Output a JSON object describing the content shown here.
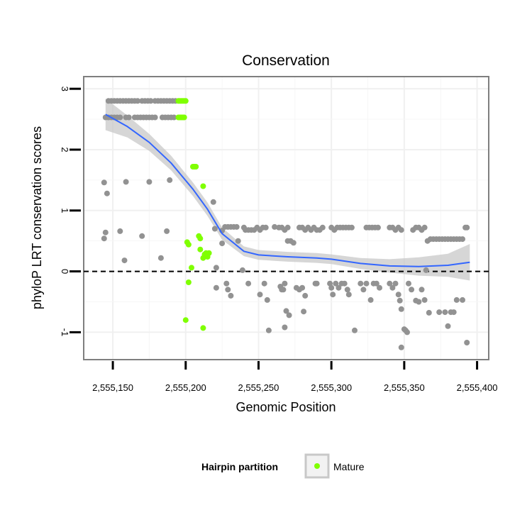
{
  "chart_data": {
    "type": "scatter",
    "title": "Conservation",
    "xlabel": "Genomic Position",
    "ylabel": "phyloP LRT conservation scores",
    "xlim": [
      2555130,
      2555408
    ],
    "ylim": [
      -1.45,
      3.2
    ],
    "x_ticks": [
      2555150,
      2555200,
      2555250,
      2555300,
      2555350,
      2555400
    ],
    "x_tick_labels": [
      "2,555,150",
      "2,555,200",
      "2,555,250",
      "2,555,300",
      "2,555,350",
      "2,555,400"
    ],
    "y_ticks": [
      -1,
      0,
      1,
      2,
      3
    ],
    "y_tick_labels": [
      "-1",
      "0",
      "1",
      "2",
      "3"
    ],
    "hline": {
      "y": 0,
      "style": "dashed",
      "color": "#000000"
    },
    "legend": {
      "title": "Hairpin partition",
      "entries": [
        "Mature"
      ],
      "position": "bottom"
    },
    "series": [
      {
        "name": "Other",
        "color": "#929292",
        "points": [
          [
            2555147,
            2.8
          ],
          [
            2555149,
            2.8
          ],
          [
            2555151,
            2.8
          ],
          [
            2555153,
            2.8
          ],
          [
            2555155,
            2.8
          ],
          [
            2555157,
            2.8
          ],
          [
            2555159,
            2.8
          ],
          [
            2555161,
            2.8
          ],
          [
            2555163,
            2.8
          ],
          [
            2555165,
            2.8
          ],
          [
            2555167,
            2.8
          ],
          [
            2555170,
            2.8
          ],
          [
            2555172,
            2.8
          ],
          [
            2555174,
            2.8
          ],
          [
            2555176,
            2.8
          ],
          [
            2555179,
            2.8
          ],
          [
            2555181,
            2.8
          ],
          [
            2555183,
            2.8
          ],
          [
            2555185,
            2.8
          ],
          [
            2555187,
            2.8
          ],
          [
            2555189,
            2.8
          ],
          [
            2555191,
            2.8
          ],
          [
            2555193,
            2.8
          ],
          [
            2555145,
            2.53
          ],
          [
            2555147,
            2.53
          ],
          [
            2555149,
            2.53
          ],
          [
            2555151,
            2.53
          ],
          [
            2555153,
            2.53
          ],
          [
            2555155,
            2.53
          ],
          [
            2555159,
            2.53
          ],
          [
            2555161,
            2.53
          ],
          [
            2555165,
            2.53
          ],
          [
            2555167,
            2.53
          ],
          [
            2555169,
            2.53
          ],
          [
            2555171,
            2.53
          ],
          [
            2555173,
            2.53
          ],
          [
            2555175,
            2.53
          ],
          [
            2555177,
            2.53
          ],
          [
            2555179,
            2.53
          ],
          [
            2555184,
            2.53
          ],
          [
            2555186,
            2.53
          ],
          [
            2555188,
            2.53
          ],
          [
            2555190,
            2.53
          ],
          [
            2555192,
            2.53
          ],
          [
            2555144,
            1.46
          ],
          [
            2555146,
            1.28
          ],
          [
            2555159,
            1.47
          ],
          [
            2555175,
            1.47
          ],
          [
            2555189,
            1.5
          ],
          [
            2555144,
            0.54
          ],
          [
            2555145,
            0.64
          ],
          [
            2555155,
            0.66
          ],
          [
            2555158,
            0.18
          ],
          [
            2555170,
            0.58
          ],
          [
            2555183,
            0.22
          ],
          [
            2555187,
            0.66
          ],
          [
            2555219,
            1.14
          ],
          [
            2555220,
            0.7
          ],
          [
            2555221,
            0.06
          ],
          [
            2555221,
            -0.27
          ],
          [
            2555225,
            0.46
          ],
          [
            2555225,
            0.67
          ],
          [
            2555227,
            0.73
          ],
          [
            2555229,
            0.73
          ],
          [
            2555231,
            0.73
          ],
          [
            2555233,
            0.73
          ],
          [
            2555235,
            0.73
          ],
          [
            2555228,
            -0.2
          ],
          [
            2555229,
            -0.3
          ],
          [
            2555231,
            -0.4
          ],
          [
            2555236,
            0.5
          ],
          [
            2555239,
            0.02
          ],
          [
            2555240,
            0.72
          ],
          [
            2555241,
            0.68
          ],
          [
            2555243,
            0.68
          ],
          [
            2555245,
            0.68
          ],
          [
            2555247,
            0.68
          ],
          [
            2555249,
            0.72
          ],
          [
            2555251,
            0.68
          ],
          [
            2555253,
            0.72
          ],
          [
            2555255,
            0.72
          ],
          [
            2555243,
            -0.2
          ],
          [
            2555251,
            -0.38
          ],
          [
            2555254,
            -0.2
          ],
          [
            2555256,
            -0.47
          ],
          [
            2555257,
            -0.97
          ],
          [
            2555261,
            0.73
          ],
          [
            2555264,
            0.72
          ],
          [
            2555266,
            0.72
          ],
          [
            2555268,
            0.68
          ],
          [
            2555270,
            0.72
          ],
          [
            2555265,
            -0.25
          ],
          [
            2555266,
            -0.3
          ],
          [
            2555267,
            -0.3
          ],
          [
            2555268,
            -0.2
          ],
          [
            2555268,
            -0.92
          ],
          [
            2555269,
            -0.65
          ],
          [
            2555271,
            -0.72
          ],
          [
            2555270,
            0.5
          ],
          [
            2555272,
            0.5
          ],
          [
            2555274,
            0.47
          ],
          [
            2555276,
            -0.27
          ],
          [
            2555278,
            -0.3
          ],
          [
            2555278,
            0.72
          ],
          [
            2555280,
            0.72
          ],
          [
            2555282,
            0.68
          ],
          [
            2555284,
            0.72
          ],
          [
            2555286,
            0.68
          ],
          [
            2555288,
            0.72
          ],
          [
            2555290,
            0.68
          ],
          [
            2555292,
            0.68
          ],
          [
            2555294,
            0.72
          ],
          [
            2555280,
            -0.27
          ],
          [
            2555281,
            -0.66
          ],
          [
            2555282,
            -0.4
          ],
          [
            2555289,
            -0.2
          ],
          [
            2555290,
            -0.2
          ],
          [
            2555300,
            0.72
          ],
          [
            2555302,
            0.68
          ],
          [
            2555304,
            0.72
          ],
          [
            2555306,
            0.72
          ],
          [
            2555308,
            0.72
          ],
          [
            2555310,
            0.72
          ],
          [
            2555312,
            0.72
          ],
          [
            2555314,
            0.72
          ],
          [
            2555299,
            -0.2
          ],
          [
            2555300,
            -0.27
          ],
          [
            2555301,
            -0.38
          ],
          [
            2555303,
            -0.2
          ],
          [
            2555305,
            -0.27
          ],
          [
            2555307,
            -0.2
          ],
          [
            2555309,
            -0.2
          ],
          [
            2555311,
            -0.3
          ],
          [
            2555312,
            -0.38
          ],
          [
            2555316,
            -0.97
          ],
          [
            2555320,
            -0.2
          ],
          [
            2555322,
            -0.3
          ],
          [
            2555324,
            0.72
          ],
          [
            2555326,
            0.72
          ],
          [
            2555328,
            0.72
          ],
          [
            2555330,
            0.72
          ],
          [
            2555332,
            0.72
          ],
          [
            2555324,
            -0.2
          ],
          [
            2555327,
            -0.47
          ],
          [
            2555329,
            -0.2
          ],
          [
            2555331,
            -0.2
          ],
          [
            2555333,
            -0.27
          ],
          [
            2555340,
            0.72
          ],
          [
            2555342,
            0.72
          ],
          [
            2555344,
            0.68
          ],
          [
            2555346,
            0.72
          ],
          [
            2555348,
            0.68
          ],
          [
            2555356,
            0.68
          ],
          [
            2555358,
            0.72
          ],
          [
            2555360,
            0.72
          ],
          [
            2555362,
            0.68
          ],
          [
            2555364,
            0.72
          ],
          [
            2555340,
            -0.2
          ],
          [
            2555342,
            -0.27
          ],
          [
            2555344,
            -0.2
          ],
          [
            2555346,
            -0.38
          ],
          [
            2555347,
            -0.48
          ],
          [
            2555348,
            -0.62
          ],
          [
            2555348,
            -1.25
          ],
          [
            2555350,
            -0.95
          ],
          [
            2555351,
            -0.97
          ],
          [
            2555352,
            -1.0
          ],
          [
            2555353,
            -0.2
          ],
          [
            2555355,
            -0.3
          ],
          [
            2555358,
            -0.48
          ],
          [
            2555360,
            -0.5
          ],
          [
            2555362,
            -0.3
          ],
          [
            2555364,
            -0.47
          ],
          [
            2555365,
            0.02
          ],
          [
            2555366,
            0.5
          ],
          [
            2555367,
            -0.68
          ],
          [
            2555368,
            0.53
          ],
          [
            2555370,
            0.53
          ],
          [
            2555372,
            0.53
          ],
          [
            2555374,
            0.53
          ],
          [
            2555376,
            0.53
          ],
          [
            2555378,
            0.53
          ],
          [
            2555380,
            0.53
          ],
          [
            2555382,
            0.53
          ],
          [
            2555384,
            0.53
          ],
          [
            2555386,
            0.53
          ],
          [
            2555388,
            0.53
          ],
          [
            2555390,
            0.53
          ],
          [
            2555374,
            -0.67
          ],
          [
            2555378,
            -0.67
          ],
          [
            2555380,
            -0.9
          ],
          [
            2555382,
            -0.67
          ],
          [
            2555384,
            -0.67
          ],
          [
            2555386,
            -0.47
          ],
          [
            2555390,
            -0.47
          ],
          [
            2555392,
            0.72
          ],
          [
            2555393,
            0.72
          ],
          [
            2555393,
            -1.17
          ]
        ]
      },
      {
        "name": "Mature",
        "color": "#7fff00",
        "points": [
          [
            2555195,
            2.8
          ],
          [
            2555196,
            2.8
          ],
          [
            2555197,
            2.8
          ],
          [
            2555198,
            2.8
          ],
          [
            2555199,
            2.8
          ],
          [
            2555200,
            2.8
          ],
          [
            2555195,
            2.53
          ],
          [
            2555196,
            2.53
          ],
          [
            2555197,
            2.53
          ],
          [
            2555198,
            2.53
          ],
          [
            2555199,
            2.53
          ],
          [
            2555205,
            1.72
          ],
          [
            2555206,
            1.72
          ],
          [
            2555207,
            1.72
          ],
          [
            2555212,
            1.4
          ],
          [
            2555201,
            0.48
          ],
          [
            2555202,
            0.44
          ],
          [
            2555209,
            0.58
          ],
          [
            2555210,
            0.54
          ],
          [
            2555210,
            0.36
          ],
          [
            2555212,
            0.22
          ],
          [
            2555213,
            0.28
          ],
          [
            2555214,
            0.3
          ],
          [
            2555215,
            0.24
          ],
          [
            2555216,
            0.3
          ],
          [
            2555204,
            0.06
          ],
          [
            2555202,
            -0.18
          ],
          [
            2555200,
            -0.8
          ],
          [
            2555212,
            -0.93
          ]
        ]
      }
    ],
    "smooth": {
      "name": "loess fit",
      "color": "#3366ff",
      "band_color": "#c8c8c8",
      "x": [
        2555145,
        2555160,
        2555175,
        2555190,
        2555205,
        2555215,
        2555225,
        2555240,
        2555250,
        2555270,
        2555290,
        2555300,
        2555320,
        2555340,
        2555360,
        2555380,
        2555395
      ],
      "y": [
        2.58,
        2.38,
        2.12,
        1.78,
        1.35,
        1.02,
        0.62,
        0.33,
        0.27,
        0.24,
        0.22,
        0.2,
        0.13,
        0.09,
        0.08,
        0.1,
        0.15
      ],
      "lower": [
        2.32,
        2.2,
        1.98,
        1.66,
        1.24,
        0.91,
        0.52,
        0.25,
        0.19,
        0.16,
        0.14,
        0.12,
        0.04,
        -0.02,
        -0.07,
        -0.09,
        -0.15
      ],
      "upper": [
        2.84,
        2.56,
        2.26,
        1.9,
        1.46,
        1.13,
        0.72,
        0.41,
        0.35,
        0.32,
        0.3,
        0.28,
        0.22,
        0.2,
        0.23,
        0.29,
        0.45
      ]
    }
  }
}
